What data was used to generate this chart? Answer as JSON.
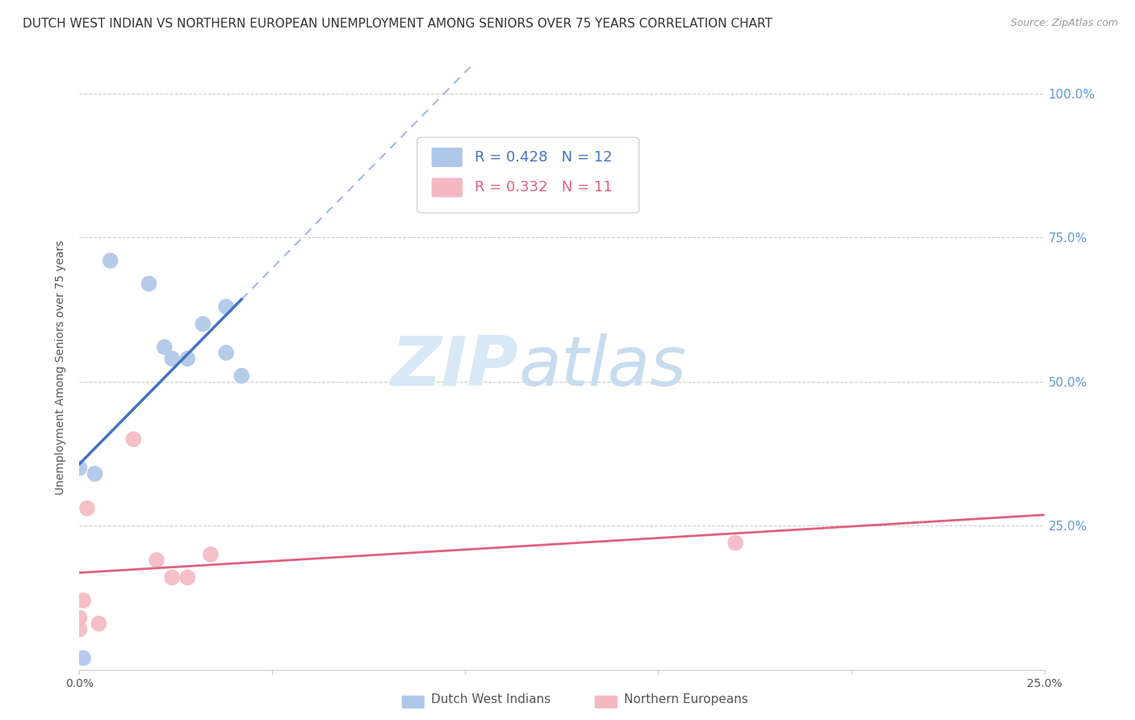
{
  "title": "DUTCH WEST INDIAN VS NORTHERN EUROPEAN UNEMPLOYMENT AMONG SENIORS OVER 75 YEARS CORRELATION CHART",
  "source": "Source: ZipAtlas.com",
  "ylabel": "Unemployment Among Seniors over 75 years",
  "xlim": [
    0,
    0.25
  ],
  "ylim": [
    0,
    1.05
  ],
  "blue_points_x": [
    0.004,
    0.008,
    0.018,
    0.022,
    0.024,
    0.028,
    0.032,
    0.038,
    0.038,
    0.042,
    0.001,
    0.0
  ],
  "blue_points_y": [
    0.34,
    0.71,
    0.67,
    0.56,
    0.54,
    0.54,
    0.6,
    0.55,
    0.63,
    0.51,
    0.02,
    0.35
  ],
  "pink_points_x": [
    0.0,
    0.0,
    0.001,
    0.002,
    0.014,
    0.02,
    0.024,
    0.028,
    0.034,
    0.17,
    0.005
  ],
  "pink_points_y": [
    0.07,
    0.09,
    0.12,
    0.28,
    0.4,
    0.19,
    0.16,
    0.16,
    0.2,
    0.22,
    0.08
  ],
  "blue_R": 0.428,
  "blue_N": 12,
  "pink_R": 0.332,
  "pink_N": 11,
  "blue_color": "#aec6e8",
  "blue_line_color": "#4472c4",
  "pink_color": "#f4b8c1",
  "pink_line_color": "#e06080",
  "right_axis_color": "#5b9bd5",
  "watermark_zip": "ZIP",
  "watermark_atlas": "atlas",
  "watermark_color": "#d8e8f5",
  "background_color": "#ffffff",
  "title_fontsize": 11,
  "source_fontsize": 9,
  "legend_blue_text": "R = 0.428   N = 12",
  "legend_pink_text": "R = 0.332   N = 11",
  "legend_blue_R_color": "#4472c4",
  "legend_pink_R_color": "#e06080",
  "bottom_legend_blue": "Dutch West Indians",
  "bottom_legend_pink": "Northern Europeans"
}
